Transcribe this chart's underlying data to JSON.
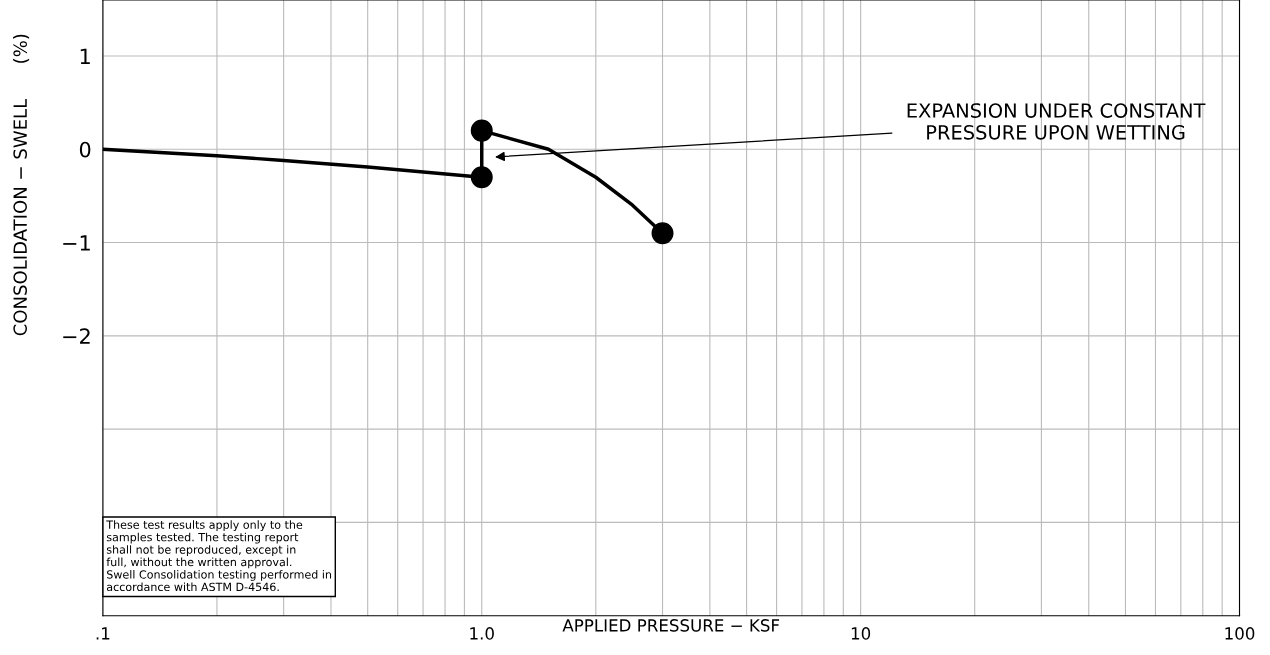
{
  "chart_data": {
    "type": "line",
    "xlabel": "APPLIED PRESSURE − KSF",
    "ylabel": "CONSOLIDATION − SWELL      (%)",
    "log": "x",
    "xlim": [
      0.1,
      100
    ],
    "ylim": [
      -5,
      1.6
    ],
    "xticks": [
      {
        "value": 0.1,
        "label": ".1"
      },
      {
        "value": 1,
        "label": "1.0"
      },
      10,
      100
    ],
    "yticks": [
      1,
      0,
      {
        "value": -1,
        "label": "−1"
      },
      {
        "value": -2,
        "label": "−2"
      },
      {
        "value": -3,
        "label": null
      },
      {
        "value": -4,
        "label": null
      }
    ],
    "grid": true,
    "series": [
      {
        "color": "#000000",
        "x": [
          0.1,
          0.2,
          0.3,
          0.5,
          1.0,
          1.0,
          1.5,
          2.0,
          2.5,
          3.0
        ],
        "values": [
          0,
          -0.07,
          -0.12,
          -0.19,
          -0.3,
          0.2,
          0.0,
          -0.3,
          -0.6,
          -0.9
        ]
      },
      {
        "type": "scatter",
        "color": "#000000",
        "marker": "circle",
        "x": [
          1.0,
          1.0,
          3.0
        ],
        "values": [
          -0.3,
          0.2,
          -0.9
        ]
      }
    ],
    "annotations": [
      "EXPANSION UNDER CONSTANT\nPRESSURE UPON WETTING",
      "These test results apply only to the\nsamples tested. The testing report\nshall not be reproduced, except in\nfull, without the written approval.\nSwell Consolidation testing performed in\naccordance with ASTM D-4546."
    ]
  }
}
